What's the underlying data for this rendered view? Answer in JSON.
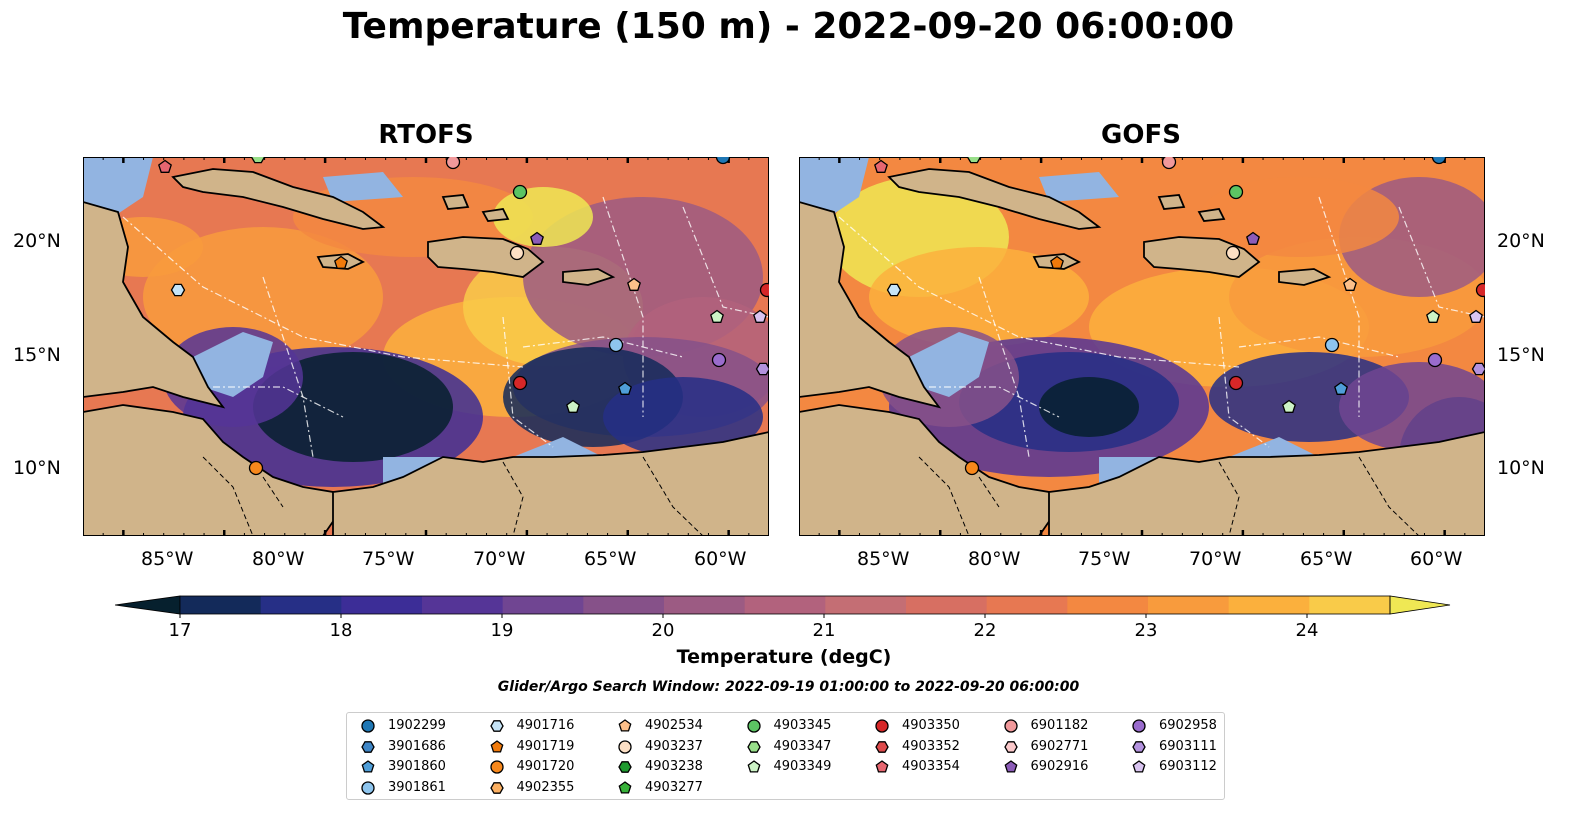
{
  "title": "Temperature (150 m) - 2022-09-20 06:00:00",
  "panels": [
    {
      "title": "RTOFS"
    },
    {
      "title": "GOFS"
    }
  ],
  "lon_ticks": [
    "85°W",
    "80°W",
    "75°W",
    "70°W",
    "65°W",
    "60°W"
  ],
  "lat_ticks": [
    "20°N",
    "15°N",
    "10°N"
  ],
  "colorbar": {
    "label": "Temperature (degC)",
    "ticks": [
      "17",
      "18",
      "19",
      "20",
      "21",
      "22",
      "23",
      "24"
    ],
    "colors": [
      "#06202e",
      "#132a5a",
      "#262f86",
      "#3c2d97",
      "#553597",
      "#704592",
      "#865189",
      "#9c5b83",
      "#b2627d",
      "#c46e74",
      "#d76f62",
      "#e77852",
      "#f38841",
      "#f89b3d",
      "#fbb03d",
      "#f9cb49",
      "#efe854"
    ]
  },
  "search_window": "Glider/Argo Search Window: 2022-09-19 01:00:00 to 2022-09-20 06:00:00",
  "legend": [
    {
      "id": "1902299",
      "color": "#1f77b4",
      "marker": "circle"
    },
    {
      "id": "3901686",
      "color": "#3f86c6",
      "marker": "hexagon"
    },
    {
      "id": "3901860",
      "color": "#4f9ed8",
      "marker": "pentagon"
    },
    {
      "id": "3901861",
      "color": "#8ec5ee",
      "marker": "circle"
    },
    {
      "id": "4901716",
      "color": "#c6e4f7",
      "marker": "hexagon"
    },
    {
      "id": "4901719",
      "color": "#f07a0b",
      "marker": "pentagon"
    },
    {
      "id": "4901720",
      "color": "#f7881c",
      "marker": "circle"
    },
    {
      "id": "4902355",
      "color": "#fcb062",
      "marker": "hexagon"
    },
    {
      "id": "4902534",
      "color": "#fdc08a",
      "marker": "pentagon"
    },
    {
      "id": "4903237",
      "color": "#fde0c5",
      "marker": "circle"
    },
    {
      "id": "4903238",
      "color": "#1f9a2f",
      "marker": "hexagon"
    },
    {
      "id": "4903277",
      "color": "#38b23a",
      "marker": "pentagon"
    },
    {
      "id": "4903345",
      "color": "#5cc463",
      "marker": "circle"
    },
    {
      "id": "4903347",
      "color": "#98df8a",
      "marker": "hexagon"
    },
    {
      "id": "4903349",
      "color": "#cdf3c6",
      "marker": "pentagon"
    },
    {
      "id": "4903350",
      "color": "#d62728",
      "marker": "circle"
    },
    {
      "id": "4903352",
      "color": "#dd4a4b",
      "marker": "hexagon"
    },
    {
      "id": "4903354",
      "color": "#e66670",
      "marker": "pentagon"
    },
    {
      "id": "6901182",
      "color": "#f1999b",
      "marker": "circle"
    },
    {
      "id": "6902771",
      "color": "#fbc9cb",
      "marker": "hexagon"
    },
    {
      "id": "6902916",
      "color": "#8c5cb8",
      "marker": "pentagon"
    },
    {
      "id": "6902958",
      "color": "#9a6ccd",
      "marker": "circle"
    },
    {
      "id": "6903111",
      "color": "#b392de",
      "marker": "hexagon"
    },
    {
      "id": "6903112",
      "color": "#d9c4f0",
      "marker": "pentagon"
    }
  ],
  "map_colors": {
    "ocean_shallow": "#92b4e1",
    "land": "#d0b48a",
    "coast": "#000000"
  }
}
